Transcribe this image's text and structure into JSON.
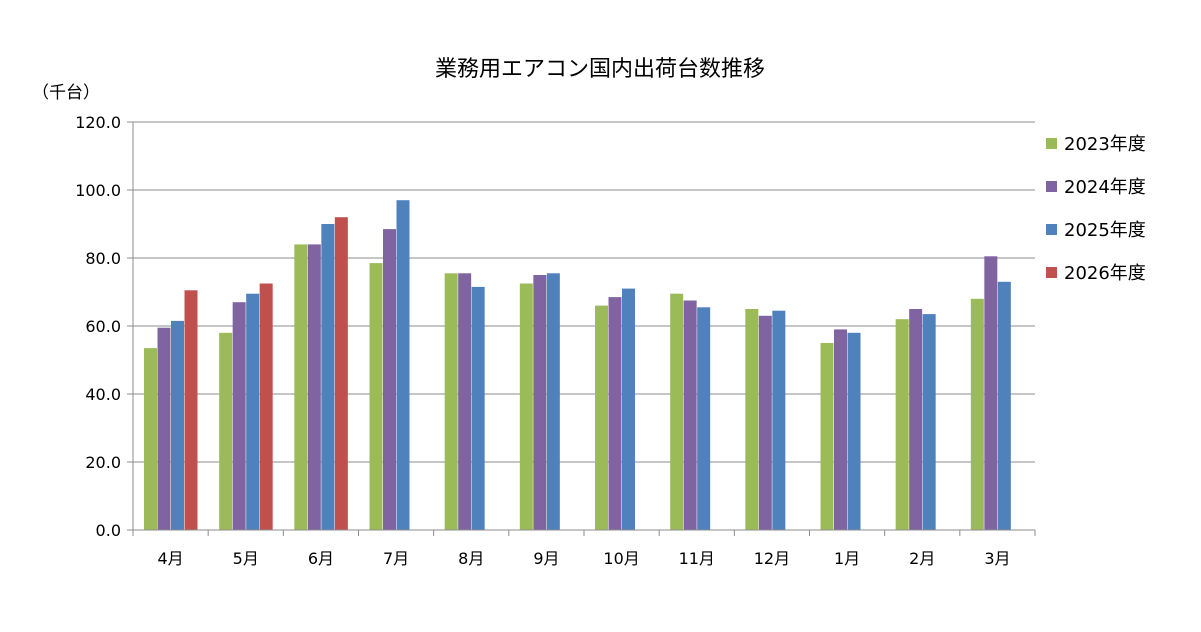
{
  "chart_data": {
    "type": "bar",
    "title": "業務用エアコン国内出荷台数推移",
    "ylabel": "（千台）",
    "xlabel": "",
    "ylim": [
      0,
      120
    ],
    "yticks": [
      "0.0",
      "20.0",
      "40.0",
      "60.0",
      "80.0",
      "100.0",
      "120.0"
    ],
    "grid": true,
    "legend_position": "right",
    "categories": [
      "4月",
      "5月",
      "6月",
      "7月",
      "8月",
      "9月",
      "10月",
      "11月",
      "12月",
      "1月",
      "2月",
      "3月"
    ],
    "series": [
      {
        "name": "2023年度",
        "color": "#9BBB59",
        "values": [
          53.5,
          58.0,
          84.0,
          78.5,
          75.5,
          72.5,
          66.0,
          69.5,
          65.0,
          55.0,
          62.0,
          68.0
        ]
      },
      {
        "name": "2024年度",
        "color": "#8064A2",
        "values": [
          59.5,
          67.0,
          84.0,
          88.5,
          75.5,
          75.0,
          68.5,
          67.5,
          63.0,
          59.0,
          65.0,
          80.5
        ]
      },
      {
        "name": "2025年度",
        "color": "#4F81BD",
        "values": [
          61.5,
          69.5,
          90.0,
          97.0,
          71.5,
          75.5,
          71.0,
          65.5,
          64.5,
          58.0,
          63.5,
          73.0
        ]
      },
      {
        "name": "2026年度",
        "color": "#C0504D",
        "values": [
          70.5,
          72.5,
          92.0,
          null,
          null,
          null,
          null,
          null,
          null,
          null,
          null,
          null
        ]
      }
    ]
  }
}
